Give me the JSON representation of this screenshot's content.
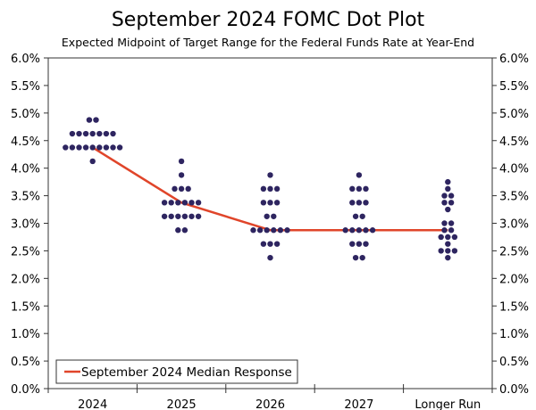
{
  "chart_data": {
    "type": "scatter",
    "title": "September 2024 FOMC Dot Plot",
    "subtitle": "Expected Midpoint of Target Range for the Federal Funds Rate at Year-End",
    "categories": [
      "2024",
      "2025",
      "2026",
      "2027",
      "Longer Run"
    ],
    "ylim": [
      0,
      6
    ],
    "yticks": [
      0,
      0.5,
      1,
      1.5,
      2,
      2.5,
      3,
      3.5,
      4,
      4.5,
      5,
      5.5,
      6
    ],
    "ytick_labels": [
      "0.0%",
      "0.5%",
      "1.0%",
      "1.5%",
      "2.0%",
      "2.5%",
      "3.0%",
      "3.5%",
      "4.0%",
      "4.5%",
      "5.0%",
      "5.5%",
      "6.0%"
    ],
    "y_axis_both_sides": true,
    "grid": false,
    "dots": [
      [
        {
          "rate": 4.875,
          "count": 2
        },
        {
          "rate": 4.625,
          "count": 7
        },
        {
          "rate": 4.375,
          "count": 9
        },
        {
          "rate": 4.125,
          "count": 1
        }
      ],
      [
        {
          "rate": 4.125,
          "count": 1
        },
        {
          "rate": 3.875,
          "count": 1
        },
        {
          "rate": 3.625,
          "count": 3
        },
        {
          "rate": 3.375,
          "count": 6
        },
        {
          "rate": 3.125,
          "count": 6
        },
        {
          "rate": 2.875,
          "count": 2
        }
      ],
      [
        {
          "rate": 3.875,
          "count": 1
        },
        {
          "rate": 3.625,
          "count": 3
        },
        {
          "rate": 3.375,
          "count": 3
        },
        {
          "rate": 3.125,
          "count": 2
        },
        {
          "rate": 2.875,
          "count": 6
        },
        {
          "rate": 2.625,
          "count": 3
        },
        {
          "rate": 2.375,
          "count": 1
        }
      ],
      [
        {
          "rate": 3.875,
          "count": 1
        },
        {
          "rate": 3.625,
          "count": 3
        },
        {
          "rate": 3.375,
          "count": 3
        },
        {
          "rate": 3.125,
          "count": 2
        },
        {
          "rate": 2.875,
          "count": 5
        },
        {
          "rate": 2.625,
          "count": 3
        },
        {
          "rate": 2.375,
          "count": 2
        }
      ],
      [
        {
          "rate": 3.75,
          "count": 1
        },
        {
          "rate": 3.625,
          "count": 1
        },
        {
          "rate": 3.5,
          "count": 2
        },
        {
          "rate": 3.375,
          "count": 2
        },
        {
          "rate": 3.25,
          "count": 1
        },
        {
          "rate": 3.0,
          "count": 2
        },
        {
          "rate": 2.875,
          "count": 2
        },
        {
          "rate": 2.75,
          "count": 3
        },
        {
          "rate": 2.625,
          "count": 1
        },
        {
          "rate": 2.5,
          "count": 3
        },
        {
          "rate": 2.375,
          "count": 1
        }
      ]
    ],
    "series": [
      {
        "name": "September 2024 Median Response",
        "values": [
          4.375,
          3.375,
          2.875,
          2.875,
          2.875
        ],
        "color": "#e0452a"
      }
    ],
    "dot_color": "#2e2560",
    "legend_placement": "bottom-left"
  }
}
